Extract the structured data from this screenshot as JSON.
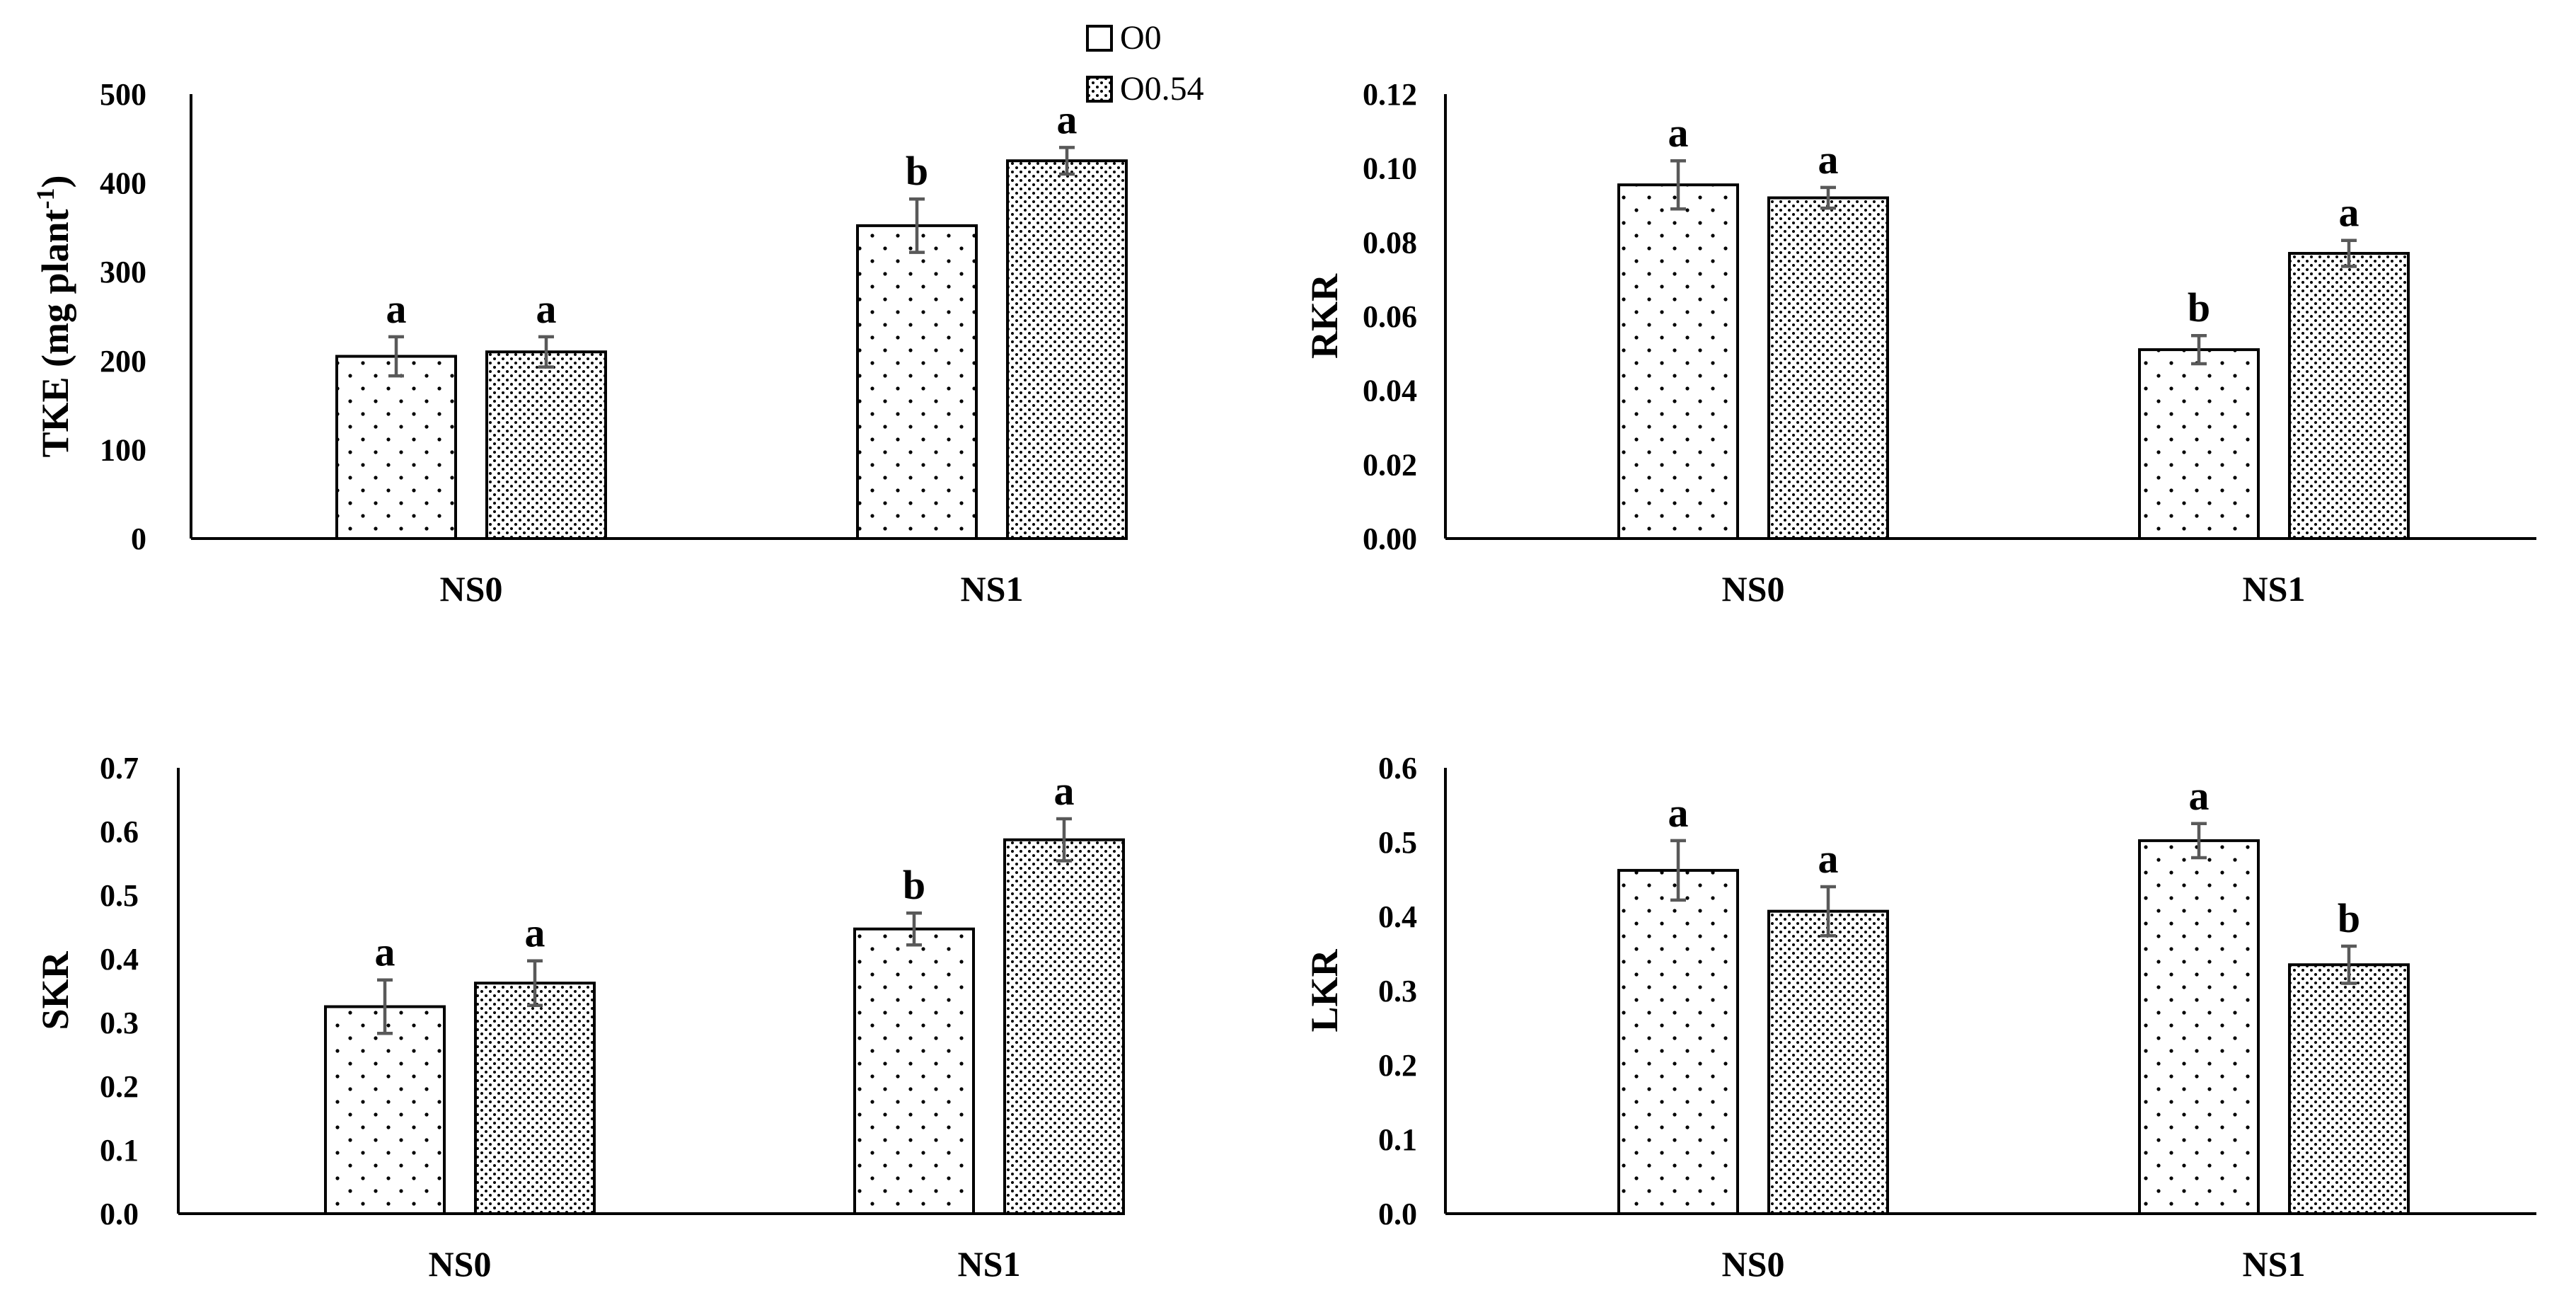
{
  "legend": {
    "entries": [
      "O0",
      "O0.54"
    ]
  },
  "chart_data": [
    {
      "type": "bar",
      "ylabel": "TKE (mg plant",
      "ylabel_sup": "-1",
      "ylabel_tail": ")",
      "categories": [
        "NS0",
        "NS1"
      ],
      "ylim": [
        0,
        500
      ],
      "yticks": [
        "0",
        "100",
        "200",
        "300",
        "400",
        "500"
      ],
      "series": [
        {
          "name": "O0",
          "values": [
            205,
            352
          ],
          "errors": [
            22,
            30
          ],
          "letters": [
            "a",
            "b"
          ]
        },
        {
          "name": "O0.54",
          "values": [
            210,
            425
          ],
          "errors": [
            17,
            15
          ],
          "letters": [
            "a",
            "a"
          ]
        }
      ]
    },
    {
      "type": "bar",
      "ylabel": "RKR",
      "categories": [
        "NS0",
        "NS1"
      ],
      "ylim": [
        0,
        0.12
      ],
      "yticks": [
        "0.00",
        "0.02",
        "0.04",
        "0.06",
        "0.08",
        "0.10",
        "0.12"
      ],
      "series": [
        {
          "name": "O0",
          "values": [
            0.0955,
            0.051
          ],
          "errors": [
            0.0065,
            0.0038
          ],
          "letters": [
            "a",
            "b"
          ]
        },
        {
          "name": "O0.54",
          "values": [
            0.092,
            0.077
          ],
          "errors": [
            0.0028,
            0.0035
          ],
          "letters": [
            "a",
            "a"
          ]
        }
      ]
    },
    {
      "type": "bar",
      "ylabel": "SKR",
      "categories": [
        "NS0",
        "NS1"
      ],
      "ylim": [
        0,
        0.7
      ],
      "yticks": [
        "0.0",
        "0.1",
        "0.2",
        "0.3",
        "0.4",
        "0.5",
        "0.6",
        "0.7"
      ],
      "series": [
        {
          "name": "O0",
          "values": [
            0.325,
            0.447
          ],
          "errors": [
            0.042,
            0.025
          ],
          "letters": [
            "a",
            "b"
          ]
        },
        {
          "name": "O0.54",
          "values": [
            0.362,
            0.587
          ],
          "errors": [
            0.035,
            0.033
          ],
          "letters": [
            "a",
            "a"
          ]
        }
      ]
    },
    {
      "type": "bar",
      "ylabel": "LKR",
      "categories": [
        "NS0",
        "NS1"
      ],
      "ylim": [
        0,
        0.6
      ],
      "yticks": [
        "0.0",
        "0.1",
        "0.2",
        "0.3",
        "0.4",
        "0.5",
        "0.6"
      ],
      "series": [
        {
          "name": "O0",
          "values": [
            0.462,
            0.502
          ],
          "errors": [
            0.04,
            0.023
          ],
          "letters": [
            "a",
            "a"
          ]
        },
        {
          "name": "O0.54",
          "values": [
            0.407,
            0.335
          ],
          "errors": [
            0.033,
            0.025
          ],
          "letters": [
            "a",
            "b"
          ]
        }
      ]
    }
  ]
}
